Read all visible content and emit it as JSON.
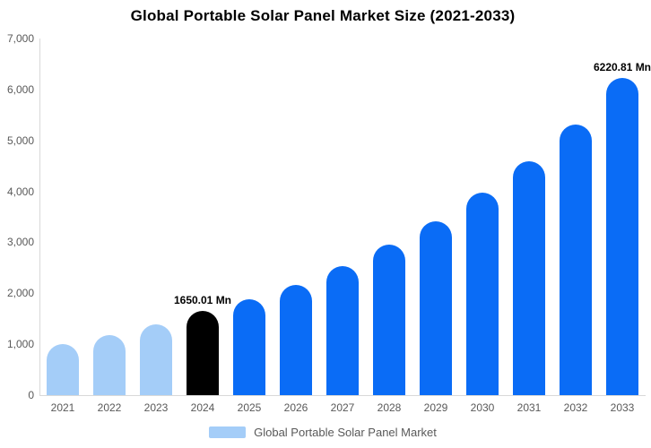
{
  "title": "Global Portable Solar Panel Market Size (2021-2033)",
  "colors": {
    "light_blue": "#a4cdf8",
    "bright_blue": "#0a6cf6",
    "highlight_black": "#000000",
    "axis_line": "#d9d9d9",
    "tick_text": "#595959"
  },
  "chart_data": {
    "type": "bar",
    "title": "Global Portable Solar Panel Market Size (2021-2033)",
    "categories": [
      "2021",
      "2022",
      "2023",
      "2024",
      "2025",
      "2026",
      "2027",
      "2028",
      "2029",
      "2030",
      "2031",
      "2032",
      "2033"
    ],
    "series": [
      {
        "name": "Global Portable Solar Panel Market",
        "values": [
          1000,
          1180,
          1390,
          1650.01,
          1890,
          2170,
          2540,
          2960,
          3410,
          3980,
          4590,
          5320,
          6220.81
        ]
      }
    ],
    "bar_colors": [
      "#a4cdf8",
      "#a4cdf8",
      "#a4cdf8",
      "#000000",
      "#0a6cf6",
      "#0a6cf6",
      "#0a6cf6",
      "#0a6cf6",
      "#0a6cf6",
      "#0a6cf6",
      "#0a6cf6",
      "#0a6cf6",
      "#0a6cf6"
    ],
    "data_labels": [
      {
        "index": 3,
        "text": "1650.01 Mn"
      },
      {
        "index": 12,
        "text": "6220.81 Mn"
      }
    ],
    "xlabel": "",
    "ylabel": "",
    "ylim": [
      0,
      7000
    ],
    "yticks": [
      {
        "value": 0,
        "label": "0"
      },
      {
        "value": 1000,
        "label": "1,000"
      },
      {
        "value": 2000,
        "label": "2,000"
      },
      {
        "value": 3000,
        "label": "3,000"
      },
      {
        "value": 4000,
        "label": "4,000"
      },
      {
        "value": 5000,
        "label": "5,000"
      },
      {
        "value": 6000,
        "label": "6,000"
      },
      {
        "value": 7000,
        "label": "7,000"
      }
    ],
    "grid": false,
    "legend": {
      "position": "bottom",
      "label": "Global Portable Solar Panel Market",
      "swatch_color": "#a4cdf8"
    }
  }
}
